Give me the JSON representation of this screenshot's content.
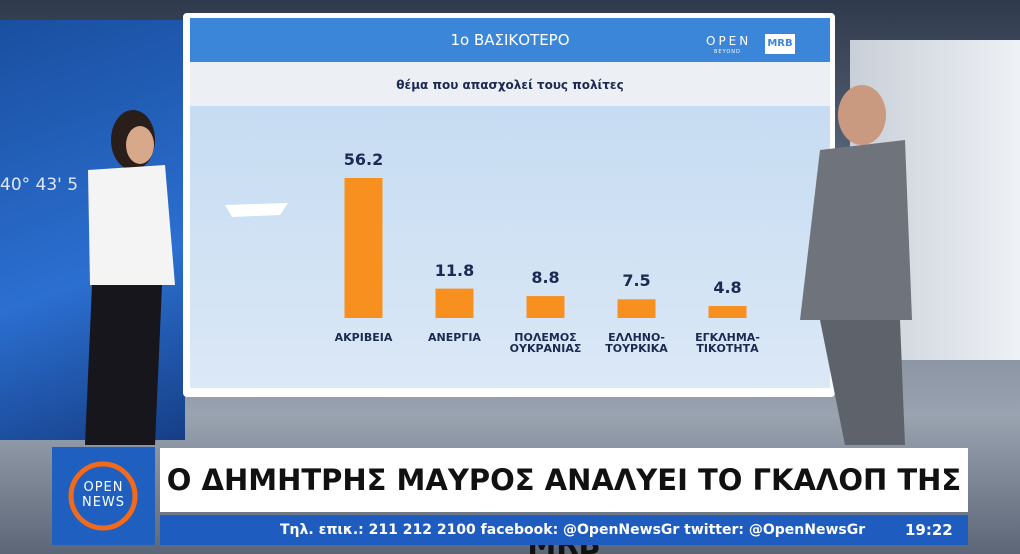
{
  "chart_data": {
    "type": "bar",
    "title": "1o ΒΑΣΙΚΟΤΕΡΟ",
    "subtitle": "θέμα που απασχολεί τους πολίτες",
    "categories": [
      "ΑΚΡΙΒΕΙΑ",
      "ΑΝΕΡΓΙΑ",
      "ΠΟΛΕΜΟΣ\nΟΥΚΡΑΝΙΑΣ",
      "ΕΛΛΗΝΟ-\nΤΟΥΡΚΙΚΑ",
      "ΕΓΚΛΗΜΑ-\nΤΙΚΟΤΗΤΑ"
    ],
    "values": [
      56.2,
      11.8,
      8.8,
      7.5,
      4.8
    ],
    "color": "#f7901e"
  },
  "screen": {
    "logo_open": "OPEN",
    "logo_beyond": "BEYOND",
    "logo_mrb": "MRB",
    "wall_text": "40° 43' 5"
  },
  "broadcast": {
    "logo_top": "OPEN",
    "logo_bottom": "NEWS",
    "headline": "Ο ΔΗΜΗΤΡΗΣ ΜΑΥΡΟΣ ΑΝΑΛΥΕΙ ΤΟ ΓΚΑΛΟΠ ΤΗΣ MRB",
    "ticker": "Τηλ. επικ.: 211 212 2100 facebook: @OpenNewsGr twitter: @OpenNewsGr",
    "clock": "19:22"
  }
}
